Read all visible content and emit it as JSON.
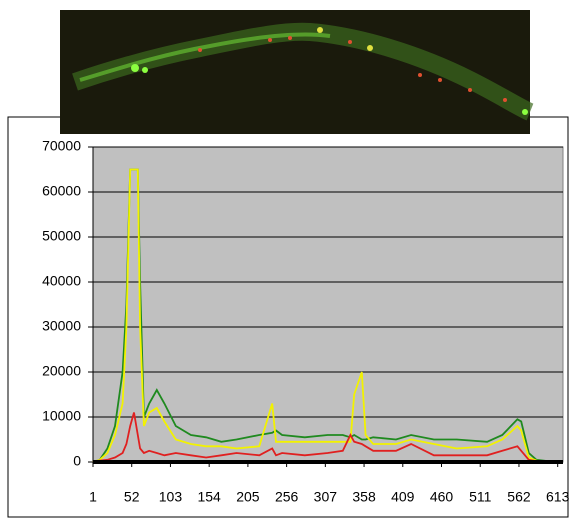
{
  "chart_data": {
    "type": "line",
    "x": [
      1,
      10,
      20,
      30,
      40,
      45,
      50,
      55,
      60,
      63,
      68,
      75,
      85,
      95,
      110,
      130,
      150,
      170,
      190,
      220,
      237,
      242,
      250,
      280,
      310,
      330,
      340,
      345,
      355,
      360,
      370,
      400,
      420,
      450,
      480,
      520,
      540,
      560,
      565,
      575,
      585,
      600,
      620
    ],
    "series": [
      {
        "color": "#1f8a1f",
        "values": [
          0,
          500,
          3000,
          8000,
          20000,
          35000,
          65000,
          65000,
          65000,
          40000,
          10000,
          13000,
          16000,
          13000,
          8000,
          6000,
          5500,
          4500,
          5000,
          6000,
          6500,
          7000,
          6000,
          5500,
          6000,
          6000,
          5500,
          6000,
          5000,
          5000,
          5500,
          5000,
          6000,
          5000,
          5000,
          4500,
          6000,
          9500,
          9000,
          2000,
          500,
          200,
          0
        ]
      },
      {
        "color": "#f2f200",
        "values": [
          0,
          500,
          2000,
          6000,
          13000,
          30000,
          65000,
          65000,
          65000,
          30000,
          8000,
          11000,
          12000,
          9000,
          5000,
          4000,
          3500,
          3500,
          3000,
          3500,
          13000,
          4500,
          4500,
          4500,
          4500,
          4500,
          4500,
          15000,
          20000,
          6000,
          4000,
          4000,
          5000,
          4000,
          3000,
          3500,
          5000,
          8000,
          7000,
          1000,
          300,
          0,
          0
        ]
      },
      {
        "color": "#e02020",
        "values": [
          0,
          300,
          500,
          1000,
          2000,
          4000,
          8000,
          11000,
          6000,
          3000,
          2000,
          2500,
          2000,
          1500,
          2000,
          1500,
          1000,
          1500,
          2000,
          1500,
          3000,
          1500,
          2000,
          1500,
          2000,
          2500,
          6000,
          4500,
          4000,
          3500,
          2500,
          2500,
          4000,
          1500,
          1500,
          1500,
          2500,
          3500,
          2500,
          500,
          200,
          0,
          0
        ]
      }
    ],
    "xlim": [
      1,
      620
    ],
    "xticks": [
      1,
      52,
      103,
      154,
      205,
      256,
      307,
      358,
      409,
      460,
      511,
      562,
      613
    ],
    "ylim": [
      0,
      70000
    ],
    "yticks": [
      0,
      10000,
      20000,
      30000,
      40000,
      50000,
      60000,
      70000
    ],
    "grid": true,
    "plot_background": "#c0c0c0"
  }
}
